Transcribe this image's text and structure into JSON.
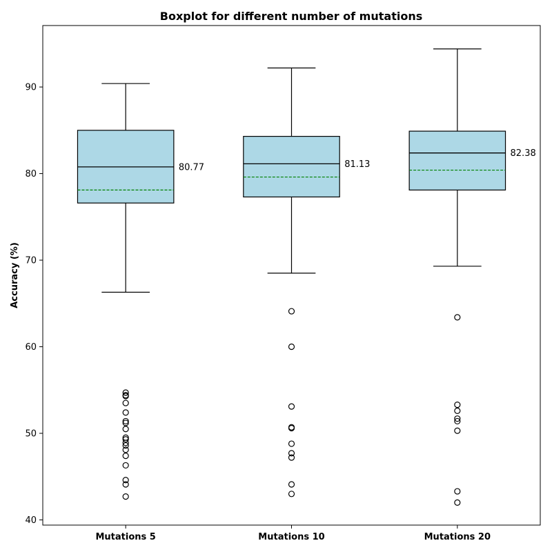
{
  "chart_data": {
    "type": "box",
    "title": "Boxplot for different number of mutations",
    "xlabel": "",
    "ylabel": "Accuracy (%)",
    "ylim": [
      39.4,
      97.1
    ],
    "yticks": [
      40,
      50,
      60,
      70,
      80,
      90
    ],
    "grid": false,
    "colors": {
      "box_fill": "#add8e6",
      "mean_line": "#008000",
      "stroke": "#000000"
    },
    "categories": [
      "Mutations 5",
      "Mutations 10",
      "Mutations 20"
    ],
    "boxes": [
      {
        "label": "Mutations 5",
        "whisker_low": 66.3,
        "q1": 76.6,
        "median": 80.77,
        "q3": 85.0,
        "whisker_high": 90.4,
        "mean": 78.1,
        "median_label": "80.77",
        "outliers": [
          54.7,
          54.4,
          54.3,
          53.5,
          52.4,
          51.4,
          51.2,
          50.5,
          49.5,
          49.3,
          48.9,
          48.6,
          48.1,
          47.4,
          46.3,
          44.6,
          44.1,
          42.7
        ]
      },
      {
        "label": "Mutations 10",
        "whisker_low": 68.5,
        "q1": 77.3,
        "median": 81.13,
        "q3": 84.3,
        "whisker_high": 92.2,
        "mean": 79.6,
        "median_label": "81.13",
        "outliers": [
          64.1,
          60.0,
          53.1,
          50.7,
          50.6,
          48.8,
          47.7,
          47.2,
          44.1,
          43.0
        ]
      },
      {
        "label": "Mutations 20",
        "whisker_low": 69.3,
        "q1": 78.1,
        "median": 82.38,
        "q3": 84.9,
        "whisker_high": 94.4,
        "mean": 80.4,
        "median_label": "82.38",
        "outliers": [
          63.4,
          53.3,
          52.6,
          51.7,
          51.4,
          50.3,
          43.3,
          42.0
        ]
      }
    ]
  }
}
